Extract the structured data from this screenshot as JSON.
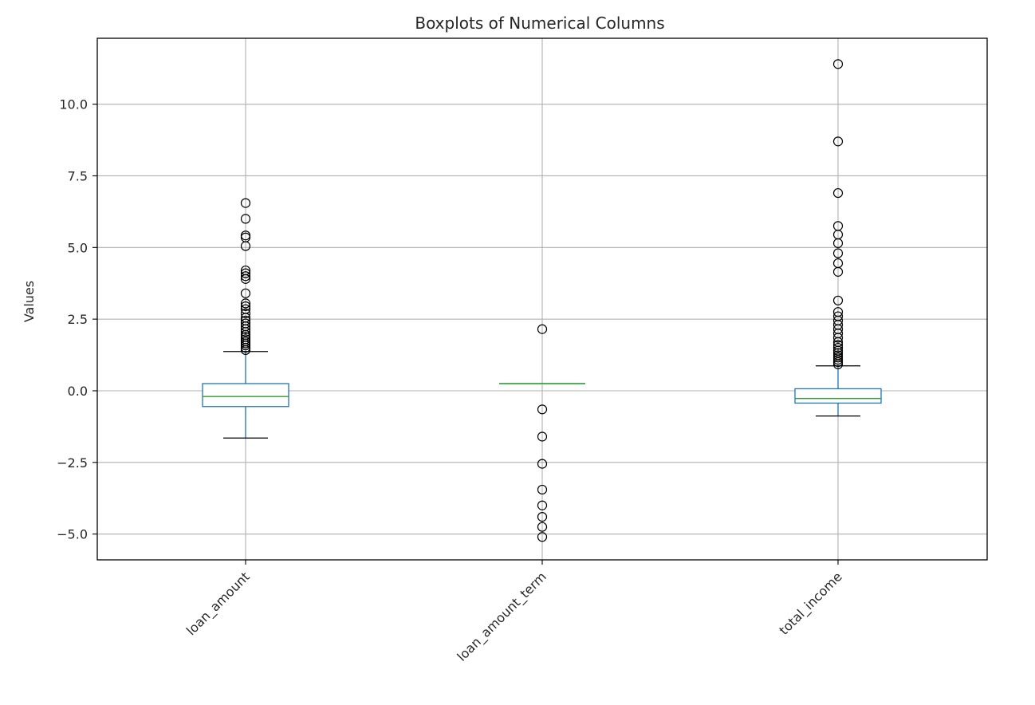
{
  "chart_data": {
    "type": "boxplot",
    "title": "Boxplots of Numerical Columns",
    "xlabel": "",
    "ylabel": "Values",
    "ylim": [
      -5.9,
      12.3
    ],
    "yticks": [
      -5.0,
      -2.5,
      0.0,
      2.5,
      5.0,
      7.5,
      10.0
    ],
    "ytick_labels": [
      "−5.0",
      "−2.5",
      "0.0",
      "2.5",
      "5.0",
      "7.5",
      "10.0"
    ],
    "categories": [
      "loan_amount",
      "loan_amount_term",
      "total_income"
    ],
    "grid": true,
    "xtick_rotation_deg": 45,
    "boxes": [
      {
        "name": "loan_amount",
        "whisker_low": -1.65,
        "q1": -0.55,
        "median": -0.2,
        "q3": 0.25,
        "whisker_high": 1.37,
        "fliers": [
          1.42,
          1.5,
          1.58,
          1.65,
          1.72,
          1.8,
          1.88,
          1.95,
          2.05,
          2.15,
          2.25,
          2.35,
          2.45,
          2.55,
          2.7,
          2.85,
          2.95,
          3.05,
          3.4,
          3.9,
          4.0,
          4.1,
          4.2,
          5.05,
          5.35,
          5.42,
          6.0,
          6.55
        ]
      },
      {
        "name": "loan_amount_term",
        "whisker_low": 0.25,
        "q1": 0.25,
        "median": 0.25,
        "q3": 0.25,
        "whisker_high": 0.25,
        "fliers": [
          2.15,
          -0.65,
          -1.6,
          -2.55,
          -3.45,
          -4.0,
          -4.4,
          -4.75,
          -5.1
        ]
      },
      {
        "name": "total_income",
        "whisker_low": -0.88,
        "q1": -0.43,
        "median": -0.27,
        "q3": 0.07,
        "whisker_high": 0.87,
        "fliers": [
          0.92,
          1.0,
          1.08,
          1.16,
          1.24,
          1.32,
          1.4,
          1.5,
          1.6,
          1.7,
          1.85,
          2.0,
          2.15,
          2.3,
          2.45,
          2.6,
          2.75,
          3.15,
          4.15,
          4.45,
          4.8,
          5.15,
          5.45,
          5.75,
          6.9,
          8.7,
          11.4
        ]
      }
    ]
  },
  "colors": {
    "box": "#1f77b4",
    "median": "#2ca02c",
    "flier": "#000000",
    "grid": "#b0b0b0",
    "frame": "#000000",
    "text": "#262626"
  }
}
